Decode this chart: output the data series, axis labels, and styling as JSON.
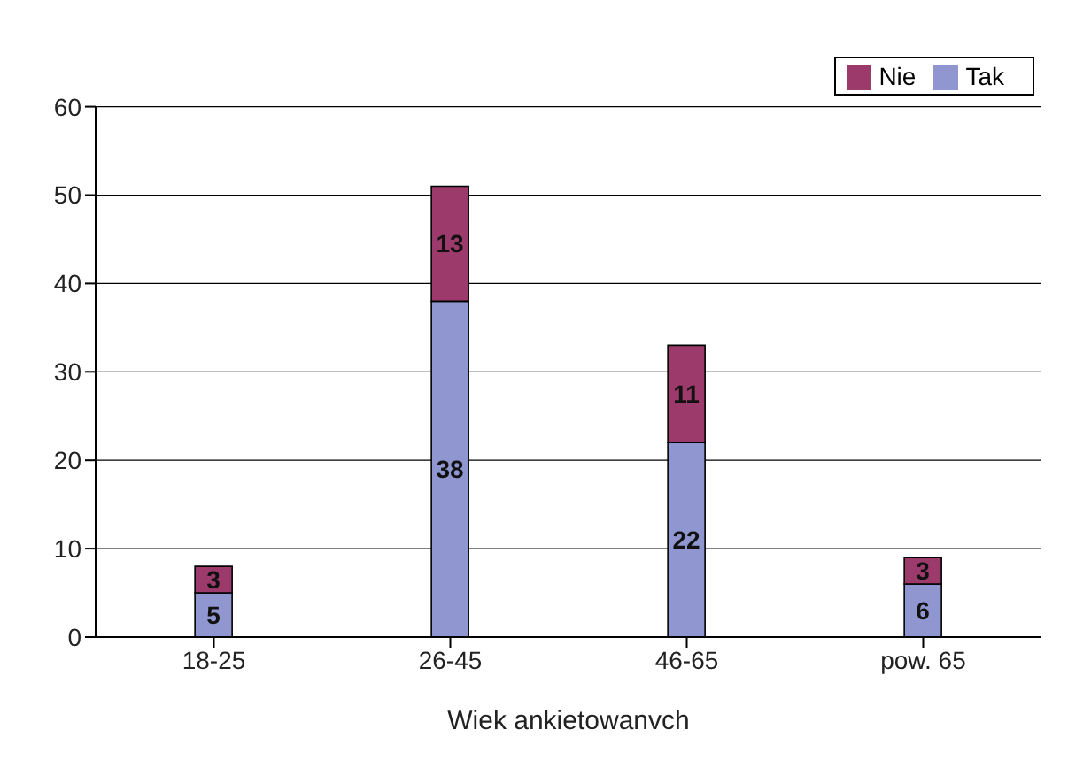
{
  "chart_data": {
    "type": "bar",
    "stacked": true,
    "xlabel": "Wiek ankietowanvch",
    "categories": [
      "18-25",
      "26-45",
      "46-65",
      "pow. 65"
    ],
    "series": [
      {
        "name": "Tak",
        "color": "#8f96d0",
        "values": [
          5,
          38,
          22,
          6
        ]
      },
      {
        "name": "Nie",
        "color": "#9b3a6b",
        "values": [
          3,
          13,
          11,
          3
        ]
      }
    ],
    "ylim": [
      0,
      60
    ],
    "yticks": [
      0,
      10,
      20,
      30,
      40,
      50,
      60
    ],
    "grid": "y",
    "legend": "top right",
    "data_labels": true
  }
}
